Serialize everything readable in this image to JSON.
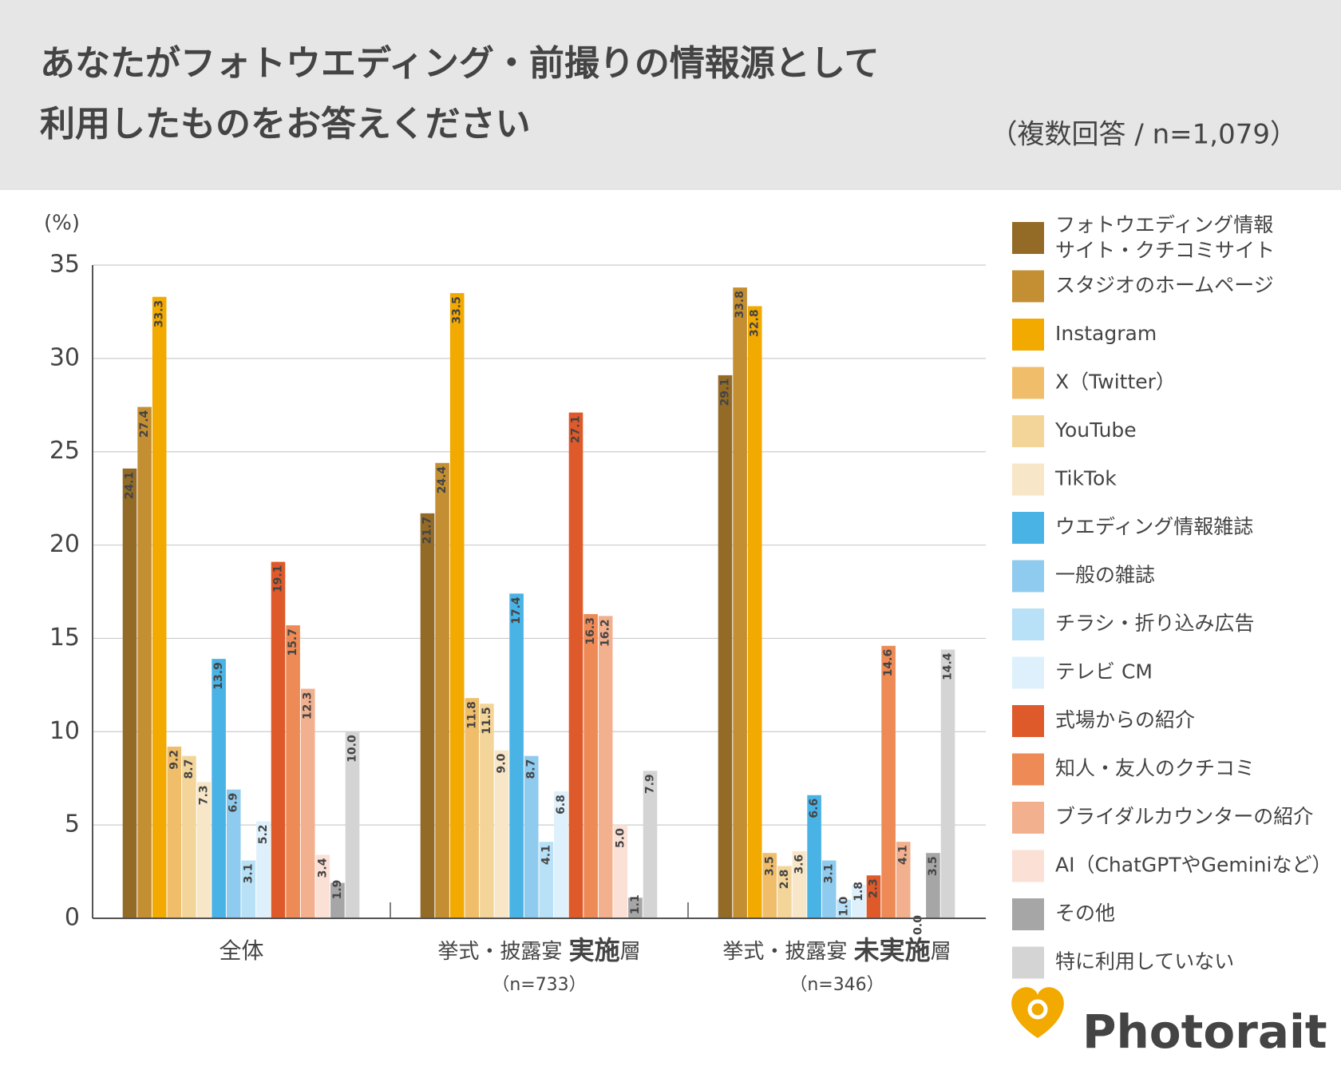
{
  "chart_data": {
    "type": "bar",
    "title": [
      "あなたがフォトウエディング・前撮りの情報源として",
      "利用したものをお答えください"
    ],
    "subtitle": "（複数回答 / n=1,079）",
    "y_label": "(%)",
    "categories": [
      "全体",
      "挙式・披露宴 実施層",
      "挙式・披露宴 未実施層"
    ],
    "category_emphasis": [
      null,
      "実施",
      "未実施"
    ],
    "category_notes": [
      null,
      "（n=733）",
      "（n=346）"
    ],
    "ylim": [
      0,
      35
    ],
    "yticks": [
      0,
      5,
      10,
      15,
      20,
      25,
      30,
      35
    ],
    "grid": true,
    "legend": "right",
    "series": [
      {
        "name": "フォトウエディング情報\nサイト・クチコミサイト",
        "color": "#936b27",
        "values": [
          24.1,
          21.7,
          29.1
        ],
        "value_labels": [
          "24.1",
          "21.7",
          "29.1"
        ]
      },
      {
        "name": "スタジオのホームページ",
        "color": "#c48f33",
        "values": [
          27.4,
          24.4,
          33.8
        ],
        "value_labels": [
          "27.4",
          "24.4",
          "33.8"
        ]
      },
      {
        "name": "Instagram",
        "color": "#f2a900",
        "values": [
          33.3,
          33.5,
          32.8
        ],
        "value_labels": [
          "33.3",
          "33.5",
          "32.8"
        ]
      },
      {
        "name": "X（Twitter）",
        "color": "#f0be6b",
        "values": [
          9.2,
          11.8,
          3.5
        ],
        "value_labels": [
          "9.2",
          "11.8",
          "3.5"
        ]
      },
      {
        "name": "YouTube",
        "color": "#f3d59a",
        "values": [
          8.7,
          11.5,
          2.8
        ],
        "value_labels": [
          "8.7",
          "11.5",
          "2.8"
        ]
      },
      {
        "name": "TikTok",
        "color": "#f8e6c8",
        "values": [
          7.3,
          9.0,
          3.6
        ],
        "value_labels": [
          "7.3",
          "9.0",
          "3.6"
        ]
      },
      {
        "name": "ウエディング情報雑誌",
        "color": "#4ab3e6",
        "values": [
          13.9,
          17.4,
          6.6
        ],
        "value_labels": [
          "13.9",
          "17.4",
          "6.6"
        ]
      },
      {
        "name": "一般の雑誌",
        "color": "#8fcbee",
        "values": [
          6.9,
          8.7,
          3.1
        ],
        "value_labels": [
          "6.9",
          "8.7",
          "3.1"
        ]
      },
      {
        "name": "チラシ・折り込み広告",
        "color": "#b8e0f6",
        "values": [
          3.1,
          4.1,
          1.0
        ],
        "value_labels": [
          "3.1",
          "4.1",
          "1.0"
        ]
      },
      {
        "name": "テレビ CM",
        "color": "#ddf0fb",
        "values": [
          5.2,
          6.8,
          1.8
        ],
        "value_labels": [
          "5.2",
          "6.8",
          "1.8"
        ]
      },
      {
        "name": "式場からの紹介",
        "color": "#df5a2a",
        "values": [
          19.1,
          27.1,
          2.3
        ],
        "value_labels": [
          "19.1",
          "27.1",
          "2.3"
        ]
      },
      {
        "name": "知人・友人のクチコミ",
        "color": "#ed8a55",
        "values": [
          15.7,
          16.3,
          14.6
        ],
        "value_labels": [
          "15.7",
          "16.3",
          "14.6"
        ]
      },
      {
        "name": "ブライダルカウンターの紹介",
        "color": "#f2b08e",
        "values": [
          12.3,
          16.2,
          4.1
        ],
        "value_labels": [
          "12.3",
          "16.2",
          "4.1"
        ]
      },
      {
        "name": "AI（ChatGPTやGeminiなど）",
        "color": "#fbe0d5",
        "values": [
          3.4,
          5.0,
          0.0
        ],
        "value_labels": [
          "3.4",
          "5.0",
          "0.0"
        ]
      },
      {
        "name": "その他",
        "color": "#a6a6a6",
        "values": [
          1.9,
          1.1,
          3.5
        ],
        "value_labels": [
          "1.9",
          "1.1",
          "3.5"
        ]
      },
      {
        "name": "特に利用していない",
        "color": "#d4d4d4",
        "values": [
          10.0,
          7.9,
          14.4
        ],
        "value_labels": [
          "10.0",
          "7.9",
          "14.4"
        ]
      }
    ]
  },
  "logo": "Photorait"
}
